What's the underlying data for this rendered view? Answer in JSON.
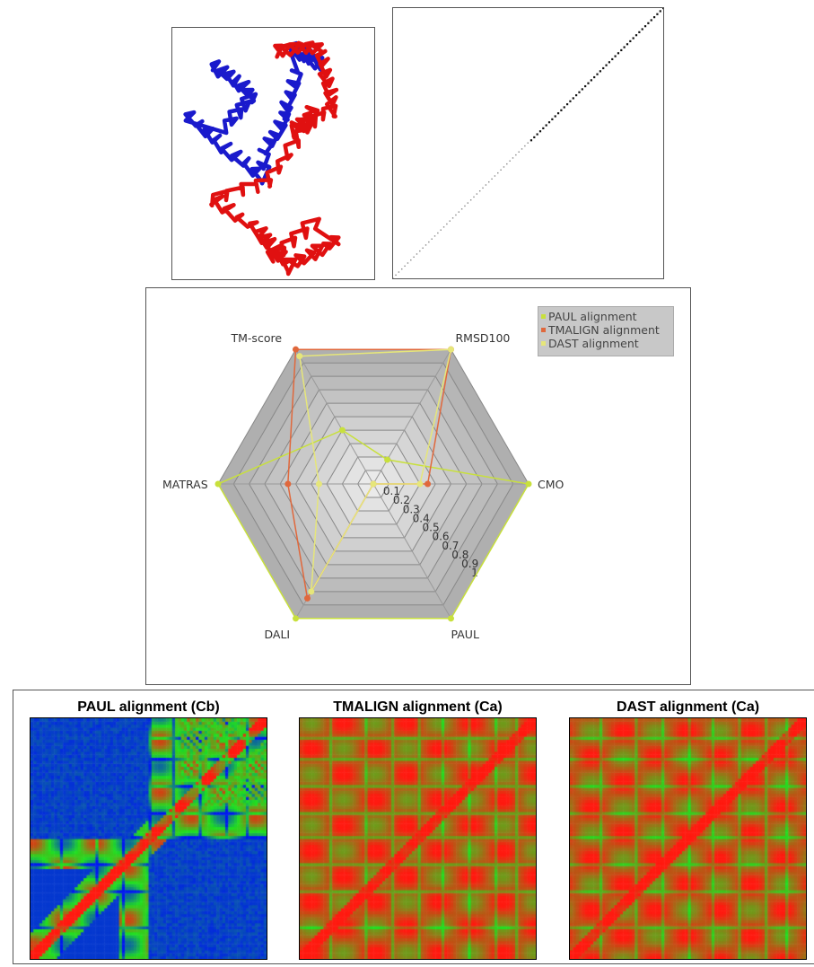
{
  "colors": {
    "paul": "#c8e03c",
    "tmalign": "#e0683c",
    "dast": "#e6e67a",
    "chain_a": "#1a1acc",
    "chain_b": "#e01010",
    "heat_low": "#0018f0",
    "heat_mid": "#20e020",
    "heat_high": "#ff1a10"
  },
  "structure_view": {
    "chain_a_color": "blue",
    "chain_b_color": "red"
  },
  "dotplot": {
    "type": "scatter",
    "x_range": [
      0,
      1
    ],
    "y_range": [
      0,
      1
    ]
  },
  "chart_data": [
    {
      "type": "radar",
      "axes": [
        "TM-score",
        "RMSD100",
        "CMO",
        "PAUL",
        "DALI",
        "MATRAS"
      ],
      "ticks": [
        "0",
        "0.1",
        "0.2",
        "0.3",
        "0.4",
        "0.5",
        "0.6",
        "0.7",
        "0.8",
        "0.9",
        "1"
      ],
      "range": [
        0,
        1
      ],
      "legend_position": "top-right",
      "grid": true,
      "series": [
        {
          "name": "PAUL alignment",
          "values": [
            0.4,
            0.18,
            1.0,
            1.0,
            1.0,
            1.0
          ]
        },
        {
          "name": "TMALIGN alignment",
          "values": [
            1.0,
            1.0,
            0.35,
            0.0,
            0.85,
            0.55
          ]
        },
        {
          "name": "DAST alignment",
          "values": [
            0.95,
            1.0,
            0.3,
            0.0,
            0.8,
            0.35
          ]
        }
      ]
    },
    {
      "type": "heatmap",
      "title": "PAUL alignment (Cb)",
      "palette": "blue-green-red"
    },
    {
      "type": "heatmap",
      "title": "TMALIGN alignment (Ca)",
      "palette": "green-red"
    },
    {
      "type": "heatmap",
      "title": "DAST alignment (Ca)",
      "palette": "green-red"
    }
  ]
}
